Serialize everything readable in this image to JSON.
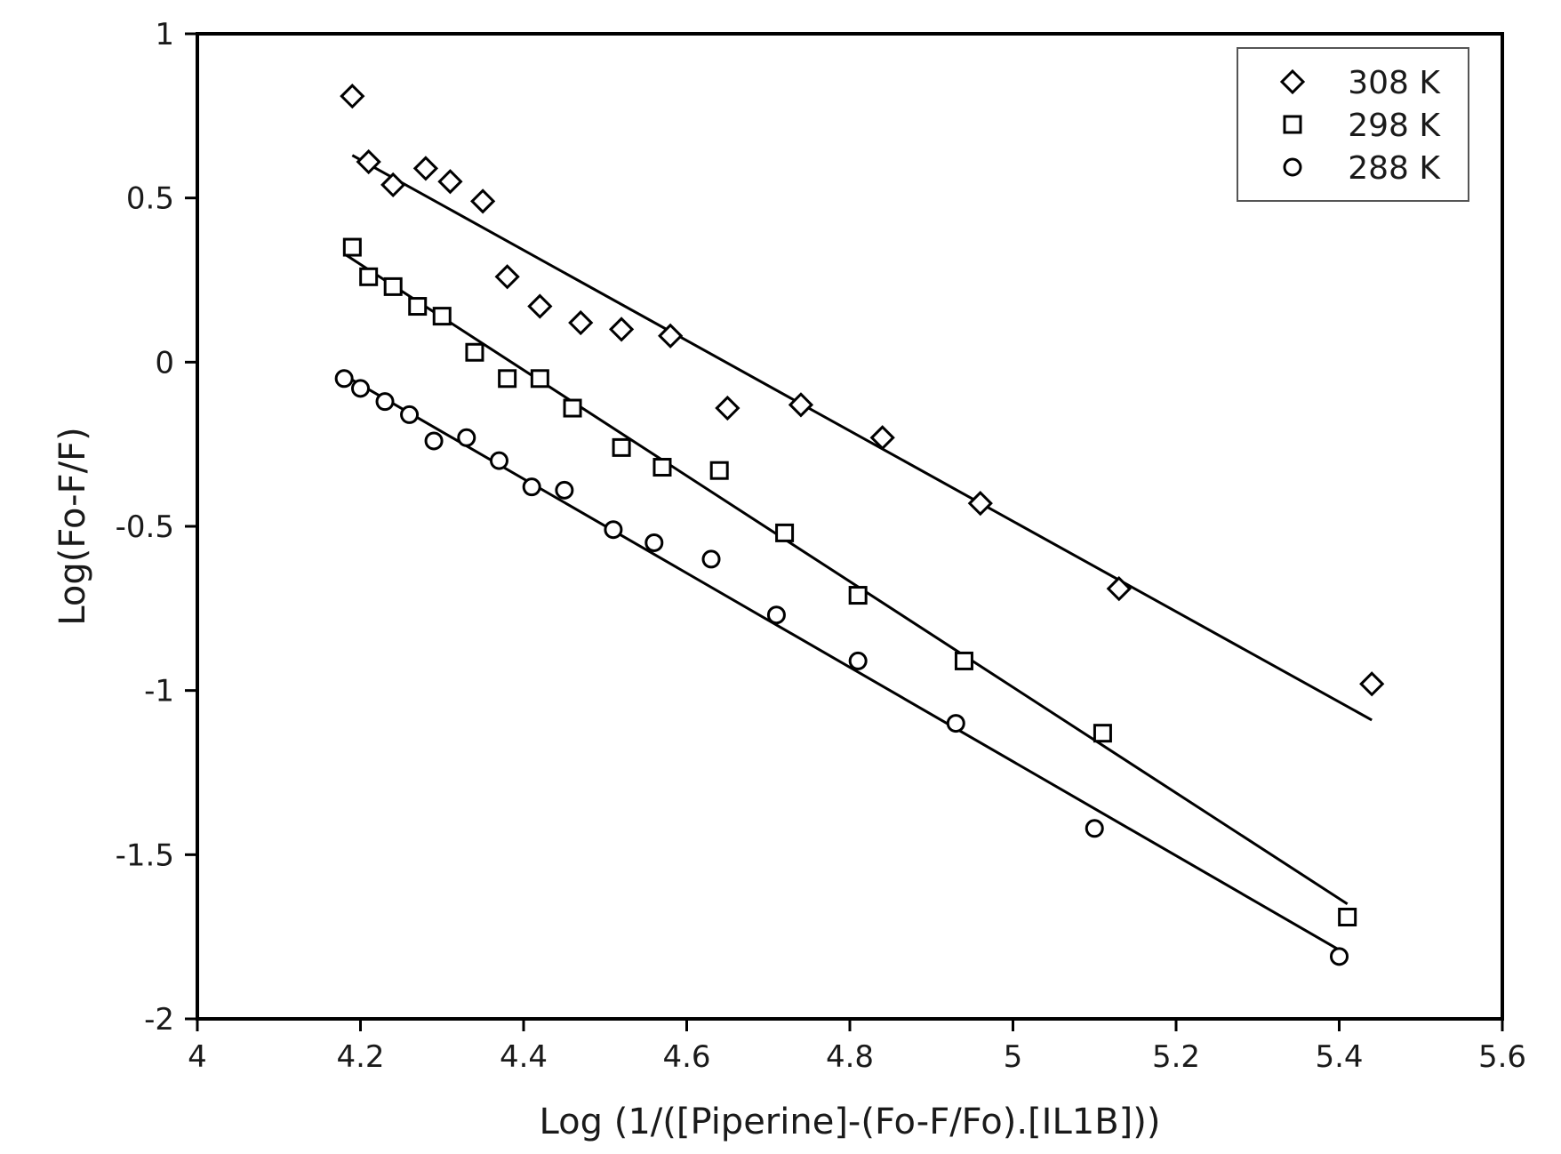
{
  "chart_data": {
    "type": "scatter",
    "title": "",
    "xlabel": "Log (1/([Piperine]-(Fo-F/Fo).[IL1B]))",
    "ylabel": "Log(Fo-F/F)",
    "xlim": [
      4,
      5.6
    ],
    "ylim": [
      -2,
      1
    ],
    "x_ticks": [
      "4",
      "4.2",
      "4.4",
      "4.6",
      "4.8",
      "5",
      "5.2",
      "5.4",
      "5.6"
    ],
    "y_ticks": [
      "1",
      "0.5",
      "0",
      "-0.5",
      "-1",
      "-1.5",
      "-2"
    ],
    "x_tick_values": [
      4,
      4.2,
      4.4,
      4.6,
      4.8,
      5,
      5.2,
      5.4,
      5.6
    ],
    "y_tick_values": [
      1,
      0.5,
      0,
      -0.5,
      -1,
      -1.5,
      -2
    ],
    "grid": false,
    "legend_position": "top-right",
    "series": [
      {
        "name": "308 K",
        "marker": "diamond",
        "color": "#000000",
        "x": [
          4.19,
          4.21,
          4.24,
          4.28,
          4.31,
          4.35,
          4.38,
          4.42,
          4.47,
          4.52,
          4.58,
          4.65,
          4.74,
          4.84,
          4.96,
          5.13,
          5.44
        ],
        "y": [
          0.81,
          0.61,
          0.54,
          0.59,
          0.55,
          0.49,
          0.26,
          0.17,
          0.12,
          0.1,
          0.08,
          -0.14,
          -0.13,
          -0.23,
          -0.43,
          -0.69,
          -0.98
        ],
        "fit": {
          "x": [
            4.19,
            5.44
          ],
          "y": [
            0.63,
            -1.09
          ]
        }
      },
      {
        "name": "298 K",
        "marker": "square",
        "color": "#000000",
        "x": [
          4.19,
          4.21,
          4.24,
          4.27,
          4.3,
          4.34,
          4.38,
          4.42,
          4.46,
          4.52,
          4.57,
          4.64,
          4.72,
          4.81,
          4.94,
          5.11,
          5.41
        ],
        "y": [
          0.35,
          0.26,
          0.23,
          0.17,
          0.14,
          0.03,
          -0.05,
          -0.05,
          -0.14,
          -0.26,
          -0.32,
          -0.33,
          -0.52,
          -0.71,
          -0.91,
          -1.13,
          -1.69
        ],
        "fit": {
          "x": [
            4.18,
            5.41
          ],
          "y": [
            0.33,
            -1.65
          ]
        }
      },
      {
        "name": "288 K",
        "marker": "circle",
        "color": "#000000",
        "x": [
          4.18,
          4.2,
          4.23,
          4.26,
          4.29,
          4.33,
          4.37,
          4.41,
          4.45,
          4.51,
          4.56,
          4.63,
          4.71,
          4.81,
          4.93,
          5.1,
          5.4
        ],
        "y": [
          -0.05,
          -0.08,
          -0.12,
          -0.16,
          -0.24,
          -0.23,
          -0.3,
          -0.38,
          -0.39,
          -0.51,
          -0.55,
          -0.6,
          -0.77,
          -0.91,
          -1.1,
          -1.42,
          -1.81
        ],
        "fit": {
          "x": [
            4.18,
            5.4
          ],
          "y": [
            -0.04,
            -1.79
          ]
        }
      }
    ]
  }
}
